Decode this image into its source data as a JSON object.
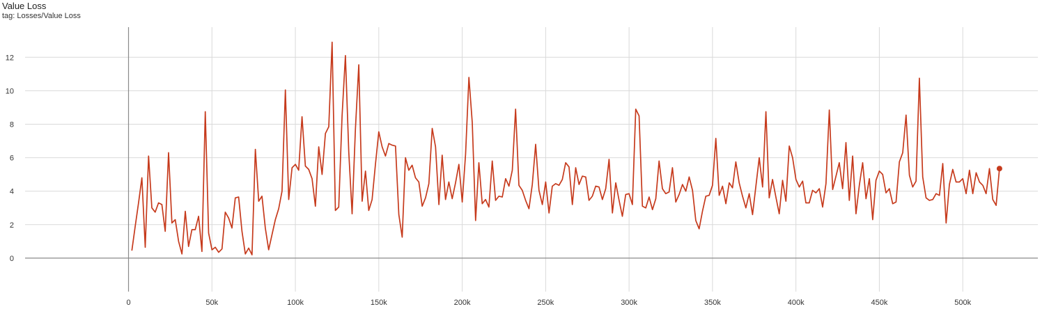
{
  "chart_header": {
    "title": "Value Loss",
    "tag": "tag: Losses/Value Loss"
  },
  "colors": {
    "series": "#c63a1c",
    "grid": "#d9d9d9",
    "axis": "#8a8a8a",
    "tick_text": "#333333"
  },
  "chart_data": {
    "type": "line",
    "title": "Value Loss",
    "subtitle": "tag: Losses/Value Loss",
    "xlabel": "",
    "ylabel": "",
    "xlim": [
      -62000,
      545000
    ],
    "ylim": [
      -2,
      13.8
    ],
    "grid": true,
    "x_ticks": [
      0,
      50000,
      100000,
      150000,
      200000,
      250000,
      300000,
      350000,
      400000,
      450000,
      500000
    ],
    "x_tick_labels": [
      "0",
      "50k",
      "100k",
      "150k",
      "200k",
      "250k",
      "300k",
      "350k",
      "400k",
      "450k",
      "500k"
    ],
    "y_ticks": [
      0,
      2,
      4,
      6,
      8,
      10,
      12
    ],
    "y_tick_labels": [
      "0",
      "2",
      "4",
      "6",
      "8",
      "10",
      "12"
    ],
    "series": [
      {
        "name": "",
        "x": [
          2000,
          4000,
          6000,
          8000,
          10000,
          12000,
          14000,
          16000,
          18000,
          20000,
          22000,
          24000,
          26000,
          28000,
          30000,
          32000,
          34000,
          36000,
          38000,
          40000,
          42000,
          44000,
          46000,
          48000,
          50000,
          52000,
          54000,
          56000,
          58000,
          60000,
          62000,
          64000,
          66000,
          68000,
          70000,
          72000,
          74000,
          76000,
          78000,
          80000,
          82000,
          84000,
          86000,
          88000,
          90000,
          92000,
          94000,
          96000,
          98000,
          100000,
          102000,
          104000,
          106000,
          108000,
          110000,
          112000,
          114000,
          116000,
          118000,
          120000,
          122000,
          124000,
          126000,
          128000,
          130000,
          132000,
          134000,
          136000,
          138000,
          140000,
          142000,
          144000,
          146000,
          148000,
          150000,
          152000,
          154000,
          156000,
          158000,
          160000,
          162000,
          164000,
          166000,
          168000,
          170000,
          172000,
          174000,
          176000,
          178000,
          180000,
          182000,
          184000,
          186000,
          188000,
          190000,
          192000,
          194000,
          196000,
          198000,
          200000,
          202000,
          204000,
          206000,
          208000,
          210000,
          212000,
          214000,
          216000,
          218000,
          220000,
          222000,
          224000,
          226000,
          228000,
          230000,
          232000,
          234000,
          236000,
          238000,
          240000,
          242000,
          244000,
          246000,
          248000,
          250000,
          252000,
          254000,
          256000,
          258000,
          260000,
          262000,
          264000,
          266000,
          268000,
          270000,
          272000,
          274000,
          276000,
          278000,
          280000,
          282000,
          284000,
          286000,
          288000,
          290000,
          292000,
          294000,
          296000,
          298000,
          300000,
          302000,
          304000,
          306000,
          308000,
          310000,
          312000,
          314000,
          316000,
          318000,
          320000,
          322000,
          324000,
          326000,
          328000,
          330000,
          332000,
          334000,
          336000,
          338000,
          340000,
          342000,
          344000,
          346000,
          348000,
          350000,
          352000,
          354000,
          356000,
          358000,
          360000,
          362000,
          364000,
          366000,
          368000,
          370000,
          372000,
          374000,
          376000,
          378000,
          380000,
          382000,
          384000,
          386000,
          388000,
          390000,
          392000,
          394000,
          396000,
          398000,
          400000,
          402000,
          404000,
          406000,
          408000,
          410000,
          412000,
          414000,
          416000,
          418000,
          420000,
          422000,
          424000,
          426000,
          428000,
          430000,
          432000,
          434000,
          436000,
          438000,
          440000,
          442000,
          444000,
          446000,
          448000,
          450000,
          452000,
          454000,
          456000,
          458000,
          460000,
          462000,
          464000,
          466000,
          468000,
          470000,
          472000,
          474000,
          476000,
          478000,
          480000,
          482000,
          484000,
          486000,
          488000,
          490000,
          492000,
          494000,
          496000,
          498000,
          500000,
          502000,
          504000,
          506000,
          508000,
          510000,
          512000,
          514000,
          516000,
          518000,
          520000,
          522000
        ],
        "y": [
          0.45,
          1.9,
          3.3,
          4.8,
          0.65,
          6.1,
          3.0,
          2.75,
          3.3,
          3.2,
          1.6,
          6.3,
          2.1,
          2.3,
          1.0,
          0.25,
          2.8,
          0.7,
          1.7,
          1.7,
          2.5,
          0.4,
          8.75,
          1.5,
          0.5,
          0.65,
          0.35,
          0.55,
          2.75,
          2.4,
          1.8,
          3.6,
          3.65,
          1.6,
          0.25,
          0.6,
          0.2,
          6.5,
          3.4,
          3.7,
          1.8,
          0.5,
          1.4,
          2.3,
          2.95,
          4.0,
          10.05,
          3.5,
          5.4,
          5.6,
          5.25,
          8.45,
          5.5,
          5.3,
          4.75,
          3.1,
          6.65,
          5.0,
          7.45,
          7.85,
          12.9,
          2.85,
          3.05,
          8.5,
          12.1,
          6.35,
          2.65,
          7.75,
          11.55,
          3.4,
          5.2,
          2.85,
          3.5,
          5.6,
          7.55,
          6.65,
          6.1,
          6.85,
          6.75,
          6.7,
          2.6,
          1.25,
          6.0,
          5.25,
          5.55,
          4.8,
          4.55,
          3.1,
          3.6,
          4.45,
          7.75,
          6.65,
          3.2,
          6.15,
          3.5,
          4.55,
          3.55,
          4.5,
          5.6,
          3.35,
          6.2,
          10.8,
          8.1,
          2.25,
          5.7,
          3.25,
          3.5,
          3.05,
          5.8,
          3.45,
          3.7,
          3.65,
          4.75,
          4.3,
          5.25,
          8.9,
          4.35,
          4.05,
          3.45,
          2.95,
          4.4,
          6.8,
          4.05,
          3.2,
          4.55,
          2.7,
          4.3,
          4.45,
          4.35,
          4.7,
          5.7,
          5.45,
          3.2,
          5.4,
          4.4,
          4.9,
          4.85,
          3.45,
          3.7,
          4.3,
          4.25,
          3.5,
          4.15,
          5.9,
          2.7,
          4.5,
          3.45,
          2.5,
          3.8,
          3.85,
          3.2,
          8.9,
          8.5,
          3.1,
          3.0,
          3.65,
          2.9,
          3.55,
          5.8,
          4.15,
          3.85,
          3.95,
          5.4,
          3.35,
          3.8,
          4.4,
          4.0,
          4.85,
          4.05,
          2.25,
          1.75,
          2.8,
          3.7,
          3.75,
          4.35,
          7.15,
          3.75,
          4.3,
          3.25,
          4.5,
          4.2,
          5.75,
          4.5,
          3.7,
          3.0,
          3.85,
          2.6,
          4.3,
          6.0,
          4.25,
          8.75,
          3.6,
          4.7,
          3.65,
          2.65,
          4.65,
          3.4,
          6.7,
          6.0,
          4.7,
          4.25,
          4.6,
          3.3,
          3.3,
          4.05,
          3.9,
          4.15,
          3.05,
          4.45,
          8.85,
          4.1,
          4.9,
          5.7,
          4.15,
          6.9,
          3.45,
          6.1,
          2.65,
          4.35,
          5.7,
          3.55,
          4.75,
          2.3,
          4.65,
          5.2,
          5.0,
          3.9,
          4.15,
          3.25,
          3.35,
          5.75,
          6.3,
          8.55,
          4.95,
          4.25,
          4.6,
          10.75,
          4.85,
          3.6,
          3.45,
          3.5,
          3.85,
          3.75,
          5.65,
          2.1,
          4.4,
          5.3,
          4.55,
          4.55,
          4.75,
          3.85,
          5.25,
          3.85,
          5.1,
          4.55,
          4.35,
          3.85,
          5.35,
          3.5,
          3.15,
          5.35
        ]
      }
    ]
  }
}
